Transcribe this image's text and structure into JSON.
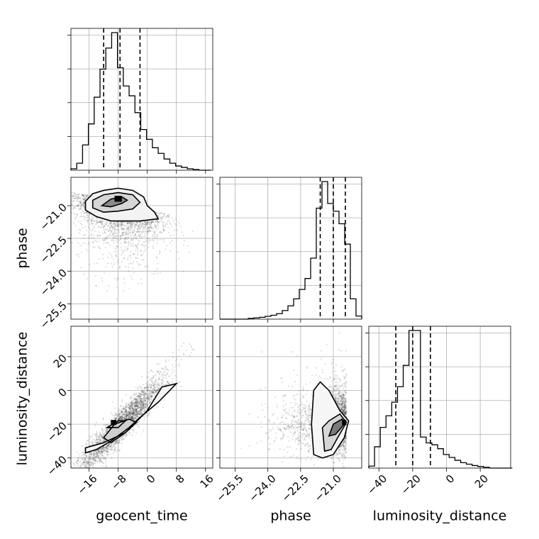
{
  "chart_data": {
    "type": "corner",
    "parameters": [
      "geocent_time",
      "phase",
      "luminosity_distance"
    ],
    "ranges": {
      "geocent_time": [
        -21,
        18
      ],
      "phase": [
        -26.2,
        -19.7
      ],
      "luminosity_distance": [
        -46,
        38
      ]
    },
    "grid": true,
    "quantiles": {
      "geocent_time": [
        -12,
        -7.5,
        -2
      ],
      "phase": [
        -21.6,
        -21.0,
        -20.45
      ],
      "luminosity_distance": [
        -30,
        -20,
        -9.5
      ]
    },
    "ticks": {
      "geocent_time": {
        "values": [
          -16,
          -8,
          0,
          8,
          16
        ],
        "labels": [
          "−16",
          "−8",
          "0",
          "8",
          "16"
        ]
      },
      "phase": {
        "values": [
          -25.5,
          -24.0,
          -22.5,
          -21.0
        ],
        "labels": [
          "−25.5",
          "−24.0",
          "−22.5",
          "−21.0"
        ]
      },
      "luminosity_distance": {
        "values": [
          -40,
          -20,
          0,
          20
        ],
        "labels": [
          "−40",
          "−20",
          "0",
          "20"
        ]
      }
    },
    "histograms": {
      "geocent_time": {
        "edges": [
          -21,
          -19.4,
          -17.8,
          -16.2,
          -14.6,
          -13,
          -11.4,
          -9.8,
          -8.2,
          -6.6,
          -5,
          -3.4,
          -1.8,
          -0.2,
          1.4,
          3,
          4.6,
          6.2,
          7.8,
          9.4,
          11,
          12.6,
          14.2,
          15.8,
          17.4
        ],
        "counts": [
          0.01,
          0.05,
          0.18,
          0.33,
          0.52,
          0.72,
          0.87,
          0.98,
          0.73,
          0.6,
          0.53,
          0.41,
          0.29,
          0.22,
          0.16,
          0.12,
          0.08,
          0.05,
          0.03,
          0.02,
          0.01,
          0.005,
          0,
          0
        ]
      },
      "phase": {
        "edges": [
          -26.2,
          -25.94,
          -25.68,
          -25.42,
          -25.16,
          -24.9,
          -24.64,
          -24.38,
          -24.12,
          -23.86,
          -23.6,
          -23.34,
          -23.08,
          -22.82,
          -22.56,
          -22.3,
          -22.04,
          -21.78,
          -21.52,
          -21.26,
          -21,
          -20.74,
          -20.48,
          -20.22,
          -19.96,
          -19.7
        ],
        "counts": [
          0,
          0,
          0,
          0,
          0,
          0.005,
          0.008,
          0.012,
          0.018,
          0.025,
          0.035,
          0.055,
          0.085,
          0.13,
          0.19,
          0.26,
          0.39,
          0.71,
          0.88,
          0.74,
          0.69,
          0.61,
          0.48,
          0.13,
          0.02
        ]
      },
      "luminosity_distance": {
        "edges": [
          -46,
          -42.6,
          -39.2,
          -35.8,
          -32.4,
          -29,
          -25.6,
          -22.2,
          -18.8,
          -15.4,
          -12,
          -8.6,
          -5.2,
          -1.8,
          1.6,
          5,
          8.4,
          11.8,
          15.2,
          18.6,
          22,
          25.4,
          28.8,
          32.2,
          35.6,
          39
        ],
        "counts": [
          0.01,
          0.11,
          0.21,
          0.27,
          0.34,
          0.42,
          0.53,
          0.71,
          0.71,
          0.16,
          0.13,
          0.12,
          0.1,
          0.07,
          0.055,
          0.04,
          0.028,
          0.02,
          0.013,
          0.008,
          0.004,
          0,
          0,
          0,
          0
        ]
      }
    }
  }
}
